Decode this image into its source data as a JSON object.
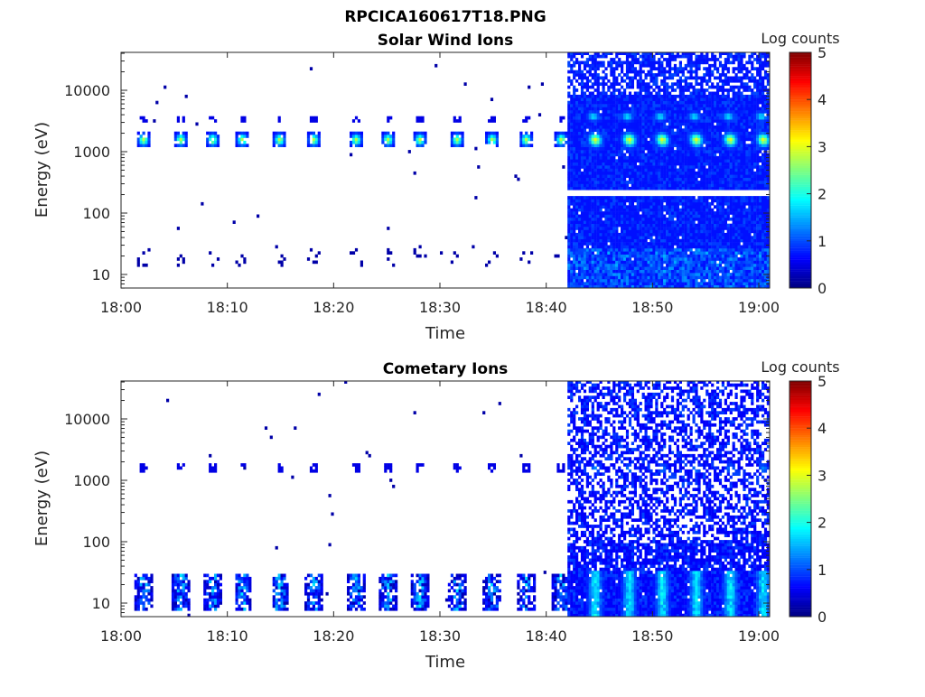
{
  "figure_title": "RPCICA160617T18.PNG",
  "chart_data": [
    {
      "type": "heatmap",
      "title": "Solar Wind Ions",
      "xlabel": "Time",
      "ylabel": "Energy (eV)",
      "colorbar_label": "Log counts",
      "colormap": "jet",
      "clim": [
        0,
        5
      ],
      "colorbar_ticks": [
        "0",
        "1",
        "2",
        "3",
        "4",
        "5"
      ],
      "xlim": [
        "18:00",
        "19:01"
      ],
      "xticks": [
        "18:00",
        "18:10",
        "18:20",
        "18:30",
        "18:40",
        "18:50",
        "19:00"
      ],
      "ylim": [
        6,
        40000
      ],
      "yscale": "log",
      "yticks": [
        "10",
        "100",
        "1000",
        "10000"
      ],
      "burst_times": [
        "18:02",
        "18:05.5",
        "18:08.5",
        "18:11.3",
        "18:14.8",
        "18:18",
        "18:22",
        "18:25",
        "18:28",
        "18:31.5",
        "18:34.8",
        "18:38",
        "18:41.3"
      ],
      "burst_energy_eV": 1500,
      "burst_peak_log_counts": 2.7,
      "continuous_coverage_from": "18:42",
      "continuous_peak_times": [
        "18:44.5",
        "18:47.7",
        "18:50.8",
        "18:54",
        "18:57.2",
        "19:00.3"
      ],
      "continuous_peak_log_counts": 3.0,
      "background_log_counts": 0.7,
      "empty_row_energy_eV": 200
    },
    {
      "type": "heatmap",
      "title": "Cometary Ions",
      "xlabel": "Time",
      "ylabel": "Energy (eV)",
      "colorbar_label": "Log counts",
      "colormap": "jet",
      "clim": [
        0,
        5
      ],
      "colorbar_ticks": [
        "0",
        "1",
        "2",
        "3",
        "4",
        "5"
      ],
      "xlim": [
        "18:00",
        "19:01"
      ],
      "xticks": [
        "18:00",
        "18:10",
        "18:20",
        "18:30",
        "18:40",
        "18:50",
        "19:00"
      ],
      "ylim": [
        6,
        40000
      ],
      "yscale": "log",
      "yticks": [
        "10",
        "100",
        "1000",
        "10000"
      ],
      "burst_times": [
        "18:02",
        "18:05.5",
        "18:08.5",
        "18:11.3",
        "18:14.8",
        "18:18",
        "18:22",
        "18:25",
        "18:28",
        "18:31.5",
        "18:34.8",
        "18:38",
        "18:41.3"
      ],
      "low_energy_range_eV": [
        8,
        30
      ],
      "low_energy_peak_log_counts": 2.0,
      "secondary_energy_eV": 1500,
      "secondary_log_counts": 0.6,
      "continuous_coverage_from": "18:42",
      "continuous_peak_times": [
        "18:44.5",
        "18:47.7",
        "18:50.8",
        "18:54",
        "18:57.2",
        "19:00.3"
      ],
      "background_log_counts": 0.6
    }
  ]
}
